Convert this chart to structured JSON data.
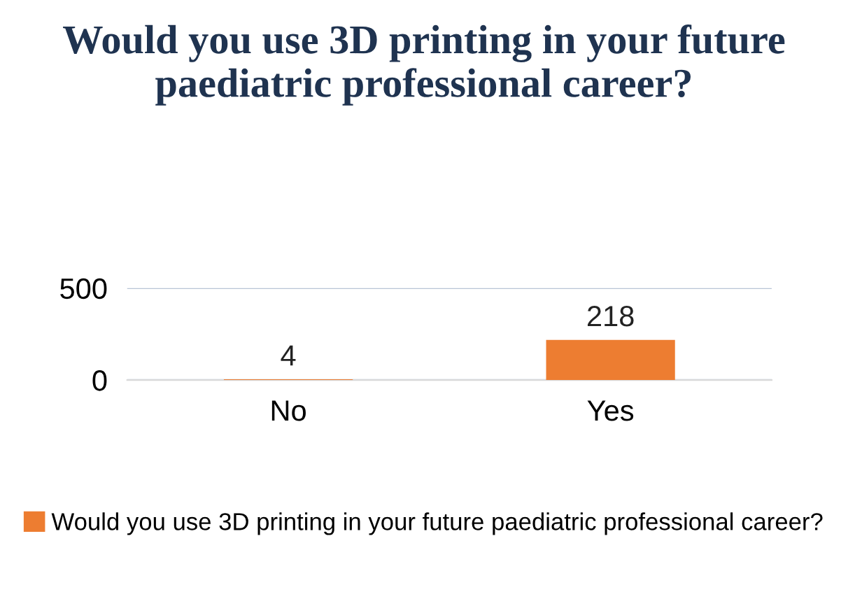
{
  "chart_data": {
    "type": "bar",
    "title": "Would you use 3D printing in your future paediatric professional career?",
    "categories": [
      "No",
      "Yes"
    ],
    "series": [
      {
        "name": "Would you use 3D printing in your future paediatric professional career?",
        "color": "#ed7d31",
        "values": [
          4,
          218
        ]
      }
    ],
    "ylim": [
      0,
      500
    ],
    "yticks": [
      0,
      500
    ],
    "grid": "y",
    "data_labels": true,
    "legend": "bottom"
  }
}
